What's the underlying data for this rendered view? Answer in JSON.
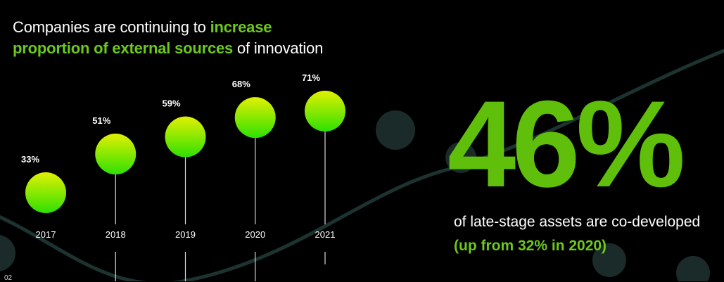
{
  "headline": {
    "part1": "Companies are continuing to ",
    "highlight1": "increase",
    "highlight2": "proportion of external sources",
    "part2": " of innovation"
  },
  "stat": {
    "value": "46%",
    "caption": "of late-stage assets are co-developed",
    "sub": "(up from 32% in 2020)"
  },
  "page_number": "02",
  "colors": {
    "background": "#000000",
    "accent": "#6cc91a",
    "bubble_top": "#e2f000",
    "bubble_bottom": "#2ee000"
  },
  "chart_data": {
    "type": "scatter",
    "categories": [
      "2017",
      "2018",
      "2019",
      "2020",
      "2021"
    ],
    "values": [
      33,
      51,
      59,
      68,
      71
    ],
    "value_labels": [
      "33%",
      "51%",
      "59%",
      "68%",
      "71%"
    ],
    "unit": "%",
    "title": "",
    "xlabel": "",
    "ylabel": "",
    "grid": false
  }
}
